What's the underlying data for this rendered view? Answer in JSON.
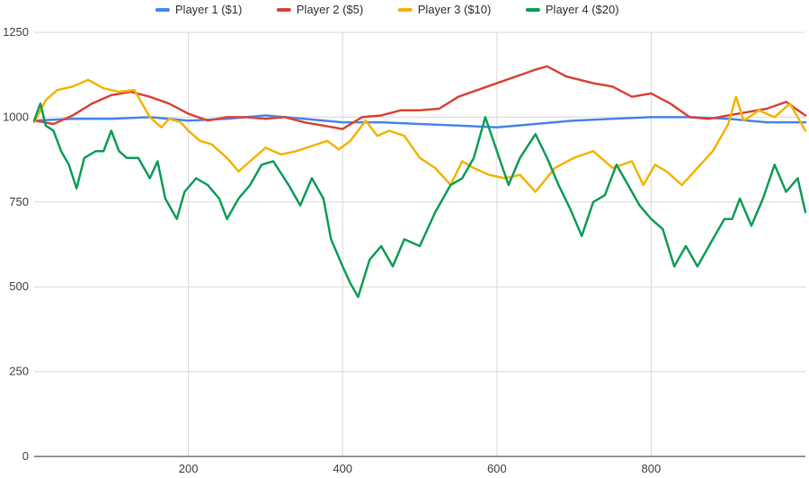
{
  "chart_data": {
    "type": "line",
    "title": "",
    "xlabel": "",
    "ylabel": "",
    "xlim": [
      0,
      1000
    ],
    "ylim": [
      0,
      1250
    ],
    "x_ticks": [
      200,
      400,
      600,
      800
    ],
    "y_ticks": [
      0,
      250,
      500,
      750,
      1000,
      1250
    ],
    "grid": true,
    "legend_position": "top",
    "series": [
      {
        "name": "Player 1 ($1)",
        "color": "#4a86e8",
        "points": [
          [
            0,
            990
          ],
          [
            50,
            995
          ],
          [
            100,
            995
          ],
          [
            150,
            1000
          ],
          [
            200,
            990
          ],
          [
            250,
            995
          ],
          [
            300,
            1005
          ],
          [
            350,
            995
          ],
          [
            400,
            985
          ],
          [
            450,
            985
          ],
          [
            500,
            980
          ],
          [
            550,
            975
          ],
          [
            600,
            970
          ],
          [
            650,
            980
          ],
          [
            700,
            990
          ],
          [
            750,
            995
          ],
          [
            800,
            1000
          ],
          [
            850,
            1000
          ],
          [
            900,
            995
          ],
          [
            950,
            985
          ],
          [
            1000,
            985
          ]
        ]
      },
      {
        "name": "Player 2 ($5)",
        "color": "#db4437",
        "points": [
          [
            0,
            990
          ],
          [
            25,
            980
          ],
          [
            50,
            1005
          ],
          [
            75,
            1040
          ],
          [
            100,
            1065
          ],
          [
            125,
            1075
          ],
          [
            150,
            1060
          ],
          [
            175,
            1040
          ],
          [
            200,
            1010
          ],
          [
            225,
            990
          ],
          [
            250,
            1000
          ],
          [
            275,
            1000
          ],
          [
            300,
            995
          ],
          [
            325,
            1000
          ],
          [
            350,
            985
          ],
          [
            375,
            975
          ],
          [
            400,
            965
          ],
          [
            425,
            1000
          ],
          [
            450,
            1005
          ],
          [
            475,
            1020
          ],
          [
            500,
            1020
          ],
          [
            525,
            1025
          ],
          [
            550,
            1060
          ],
          [
            575,
            1080
          ],
          [
            600,
            1100
          ],
          [
            625,
            1120
          ],
          [
            650,
            1140
          ],
          [
            665,
            1150
          ],
          [
            690,
            1120
          ],
          [
            725,
            1100
          ],
          [
            750,
            1090
          ],
          [
            775,
            1060
          ],
          [
            800,
            1070
          ],
          [
            825,
            1040
          ],
          [
            850,
            1000
          ],
          [
            875,
            995
          ],
          [
            900,
            1005
          ],
          [
            925,
            1015
          ],
          [
            950,
            1025
          ],
          [
            975,
            1045
          ],
          [
            1000,
            1005
          ]
        ]
      },
      {
        "name": "Player 3 ($10)",
        "color": "#f4b400",
        "points": [
          [
            0,
            985
          ],
          [
            15,
            1050
          ],
          [
            30,
            1080
          ],
          [
            50,
            1090
          ],
          [
            70,
            1110
          ],
          [
            90,
            1085
          ],
          [
            110,
            1075
          ],
          [
            130,
            1080
          ],
          [
            150,
            1000
          ],
          [
            165,
            970
          ],
          [
            175,
            995
          ],
          [
            190,
            985
          ],
          [
            200,
            960
          ],
          [
            215,
            930
          ],
          [
            230,
            920
          ],
          [
            250,
            880
          ],
          [
            265,
            840
          ],
          [
            280,
            870
          ],
          [
            300,
            910
          ],
          [
            320,
            890
          ],
          [
            340,
            900
          ],
          [
            360,
            915
          ],
          [
            380,
            930
          ],
          [
            395,
            905
          ],
          [
            410,
            930
          ],
          [
            430,
            990
          ],
          [
            445,
            945
          ],
          [
            460,
            960
          ],
          [
            480,
            945
          ],
          [
            500,
            880
          ],
          [
            520,
            850
          ],
          [
            540,
            800
          ],
          [
            555,
            870
          ],
          [
            570,
            850
          ],
          [
            590,
            830
          ],
          [
            610,
            820
          ],
          [
            630,
            830
          ],
          [
            650,
            780
          ],
          [
            675,
            850
          ],
          [
            700,
            880
          ],
          [
            725,
            900
          ],
          [
            750,
            850
          ],
          [
            775,
            870
          ],
          [
            790,
            800
          ],
          [
            805,
            860
          ],
          [
            820,
            840
          ],
          [
            840,
            800
          ],
          [
            860,
            850
          ],
          [
            880,
            900
          ],
          [
            900,
            980
          ],
          [
            910,
            1060
          ],
          [
            920,
            990
          ],
          [
            940,
            1020
          ],
          [
            960,
            1000
          ],
          [
            980,
            1040
          ],
          [
            1000,
            960
          ]
        ]
      },
      {
        "name": "Player 4 ($20)",
        "color": "#0f9d58",
        "points": [
          [
            0,
            990
          ],
          [
            8,
            1040
          ],
          [
            15,
            975
          ],
          [
            25,
            960
          ],
          [
            35,
            900
          ],
          [
            45,
            860
          ],
          [
            55,
            790
          ],
          [
            65,
            880
          ],
          [
            80,
            900
          ],
          [
            90,
            900
          ],
          [
            100,
            960
          ],
          [
            110,
            900
          ],
          [
            120,
            880
          ],
          [
            135,
            880
          ],
          [
            150,
            820
          ],
          [
            160,
            870
          ],
          [
            170,
            760
          ],
          [
            185,
            700
          ],
          [
            195,
            780
          ],
          [
            210,
            820
          ],
          [
            225,
            800
          ],
          [
            240,
            760
          ],
          [
            250,
            700
          ],
          [
            265,
            760
          ],
          [
            280,
            800
          ],
          [
            295,
            860
          ],
          [
            310,
            870
          ],
          [
            330,
            800
          ],
          [
            345,
            740
          ],
          [
            360,
            820
          ],
          [
            375,
            760
          ],
          [
            385,
            640
          ],
          [
            400,
            560
          ],
          [
            410,
            510
          ],
          [
            420,
            470
          ],
          [
            435,
            580
          ],
          [
            450,
            620
          ],
          [
            465,
            560
          ],
          [
            480,
            640
          ],
          [
            500,
            620
          ],
          [
            520,
            720
          ],
          [
            540,
            800
          ],
          [
            555,
            820
          ],
          [
            570,
            880
          ],
          [
            585,
            1000
          ],
          [
            600,
            900
          ],
          [
            615,
            800
          ],
          [
            630,
            880
          ],
          [
            650,
            950
          ],
          [
            665,
            880
          ],
          [
            680,
            800
          ],
          [
            695,
            730
          ],
          [
            710,
            650
          ],
          [
            725,
            750
          ],
          [
            740,
            770
          ],
          [
            755,
            860
          ],
          [
            770,
            800
          ],
          [
            785,
            740
          ],
          [
            800,
            700
          ],
          [
            815,
            670
          ],
          [
            830,
            560
          ],
          [
            845,
            620
          ],
          [
            860,
            560
          ],
          [
            880,
            640
          ],
          [
            895,
            700
          ],
          [
            905,
            700
          ],
          [
            915,
            760
          ],
          [
            930,
            680
          ],
          [
            945,
            760
          ],
          [
            960,
            860
          ],
          [
            975,
            780
          ],
          [
            990,
            820
          ],
          [
            1000,
            720
          ]
        ]
      }
    ]
  }
}
